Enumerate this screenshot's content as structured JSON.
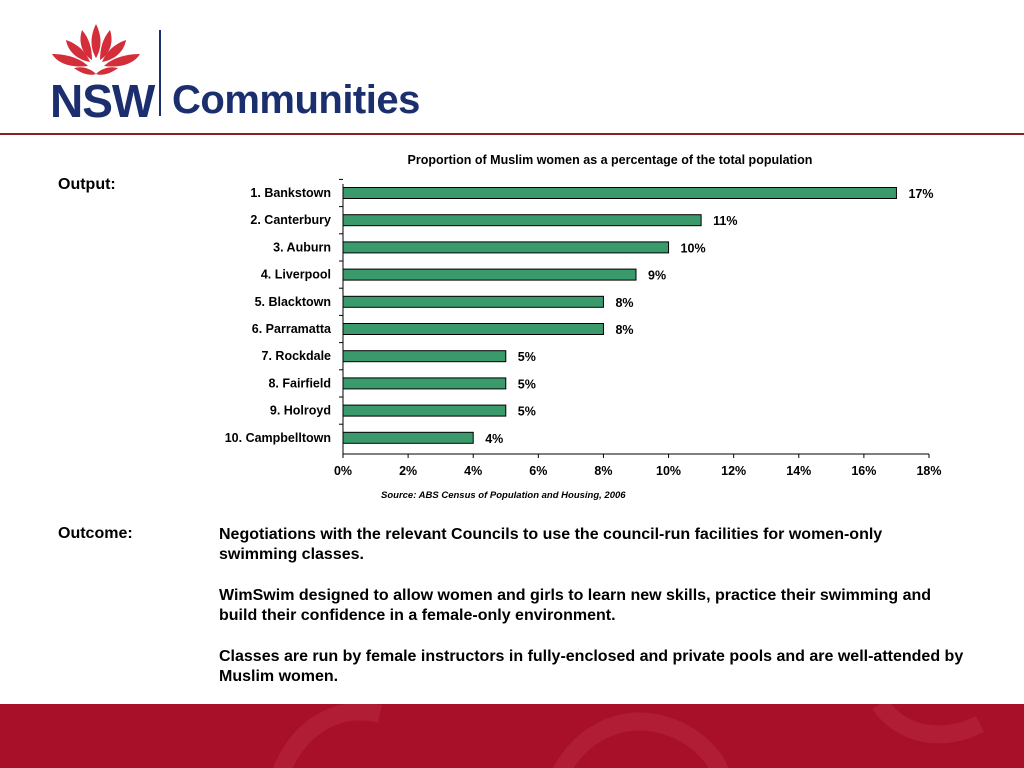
{
  "logo": {
    "nsw": "NSW",
    "word": "Communities"
  },
  "output_label": "Output:",
  "chart_data": {
    "type": "bar",
    "orientation": "horizontal",
    "title": "Proportion of Muslim women as a percentage of the total population",
    "categories": [
      "1. Bankstown",
      "2. Canterbury",
      "3. Auburn",
      "4. Liverpool",
      "5. Blacktown",
      "6. Parramatta",
      "7. Rockdale",
      "8. Fairfield",
      "9. Holroyd",
      "10. Campbelltown"
    ],
    "values": [
      17,
      11,
      10,
      9,
      8,
      8,
      5,
      5,
      5,
      4
    ],
    "data_labels": [
      "17%",
      "11%",
      "10%",
      "9%",
      "8%",
      "8%",
      "5%",
      "5%",
      "5%",
      "4%"
    ],
    "xlim": [
      0,
      18
    ],
    "x_ticks": [
      "0%",
      "2%",
      "4%",
      "6%",
      "8%",
      "10%",
      "12%",
      "14%",
      "16%",
      "18%"
    ],
    "bar_color": "#3a9a6b",
    "grid": false,
    "source": "Source: ABS Census of Population and Housing, 2006"
  },
  "outcome": {
    "label": "Outcome:",
    "paragraphs": [
      "Negotiations with the relevant Councils to use the council-run facilities for women-only swimming classes.",
      "WimSwim designed to allow women and girls to learn new skills, practice their swimming and build their confidence in a female-only environment.",
      "Classes are run by female instructors in fully-enclosed and private pools and are well-attended by Muslim women."
    ]
  },
  "colors": {
    "brand_red": "#a8102a",
    "brand_navy": "#1b2f6e",
    "rule": "#8a1f23",
    "waratah": "#d42e3b"
  }
}
